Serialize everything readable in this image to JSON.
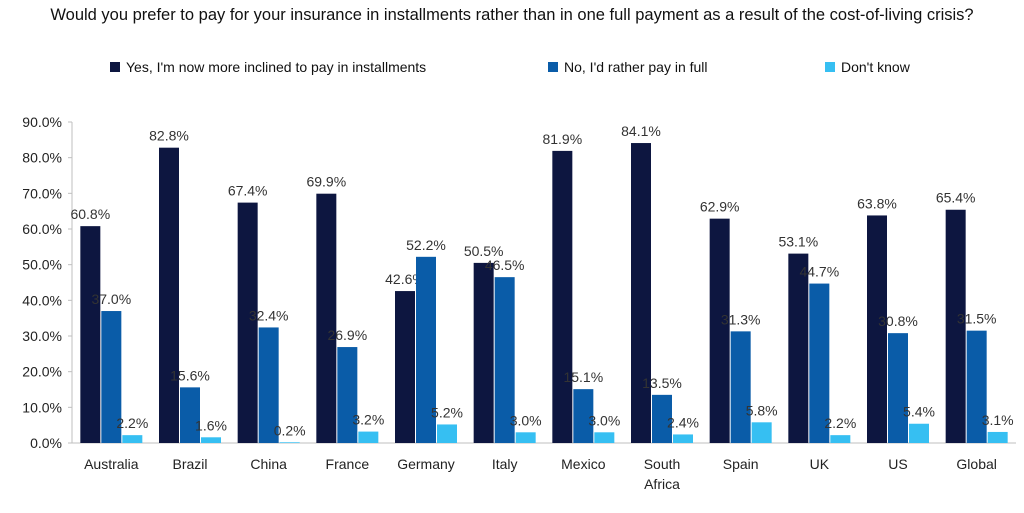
{
  "chart_data": {
    "type": "bar",
    "title": "Would you prefer to pay for your insurance in installments rather than in one full payment as a result of the cost-of-living crisis?",
    "categories": [
      "Australia",
      "Brazil",
      "China",
      "France",
      "Germany",
      "Italy",
      "Mexico",
      "South Africa",
      "Spain",
      "UK",
      "US",
      "Global"
    ],
    "series": [
      {
        "name": "Yes, I'm now more inclined to pay in installments",
        "color": "#0d1640",
        "values": [
          60.8,
          82.8,
          67.4,
          69.9,
          42.6,
          50.5,
          81.9,
          84.1,
          62.9,
          53.1,
          63.8,
          65.4
        ]
      },
      {
        "name": "No, I'd rather pay in full",
        "color": "#0a5ca8",
        "values": [
          37.0,
          15.6,
          32.4,
          26.9,
          52.2,
          46.5,
          15.1,
          13.5,
          31.3,
          44.7,
          30.8,
          31.5
        ]
      },
      {
        "name": "Don't know",
        "color": "#36bff2",
        "values": [
          2.2,
          1.6,
          0.2,
          3.2,
          5.2,
          3.0,
          3.0,
          2.4,
          5.8,
          2.2,
          5.4,
          3.1
        ]
      }
    ],
    "ylim": [
      0,
      90
    ],
    "yticks": [
      0,
      10,
      20,
      30,
      40,
      50,
      60,
      70,
      80,
      90
    ],
    "y_format": "percent_1dp",
    "xlabel": "",
    "ylabel": "",
    "legend": "top",
    "grid": false,
    "data_labels": true
  }
}
